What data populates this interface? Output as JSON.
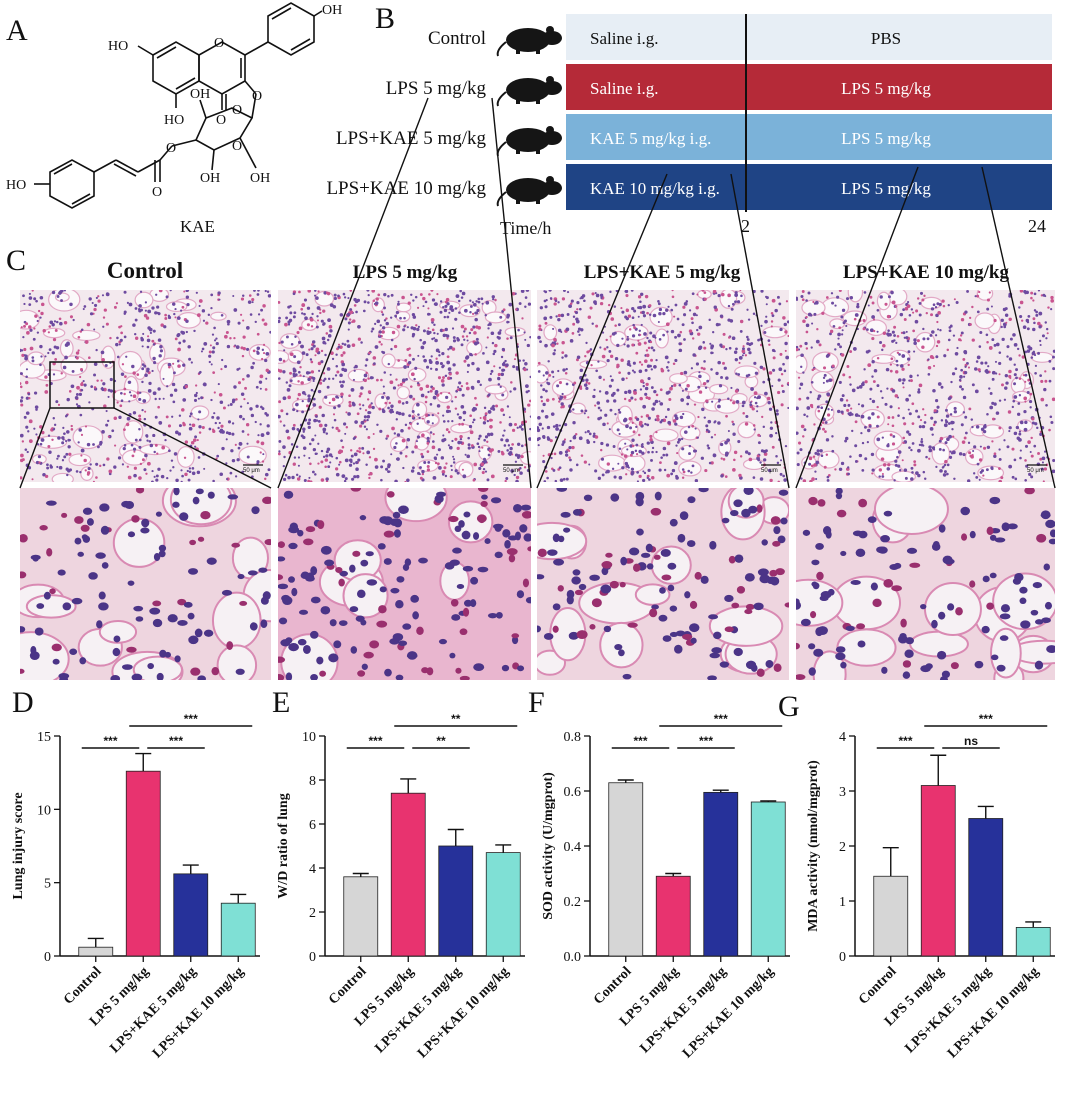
{
  "panels": {
    "a": "A",
    "b": "B",
    "c": "C",
    "d": "D",
    "e": "E",
    "f": "F",
    "g": "G"
  },
  "structure": {
    "caption": "KAE",
    "atom_labels": [
      "HO",
      "OH",
      "O",
      "O",
      "O",
      "O",
      "O",
      "O",
      "HO",
      "OH",
      "OH",
      "OH",
      "O",
      "HO"
    ]
  },
  "scheme": {
    "groups": [
      {
        "name": "Control",
        "pre": "Saline i.g.",
        "post": "PBS",
        "color": "#e7eef5",
        "text_color": "#111111"
      },
      {
        "name": "LPS 5 mg/kg",
        "pre": "Saline i.g.",
        "post": "LPS 5 mg/kg",
        "color": "#b52a38",
        "text_color": "#ffffff"
      },
      {
        "name": "LPS+KAE 5 mg/kg",
        "pre": "KAE 5 mg/kg i.g.",
        "post": "LPS 5 mg/kg",
        "color": "#7bb2d9",
        "text_color": "#ffffff"
      },
      {
        "name": "LPS+KAE 10 mg/kg",
        "pre": "KAE 10 mg/kg i.g.",
        "post": "LPS 5 mg/kg",
        "color": "#1f4485",
        "text_color": "#ffffff"
      }
    ],
    "time_label": "Time/h",
    "time_ticks": [
      "2",
      "24"
    ]
  },
  "histology": {
    "titles": [
      "Control",
      "LPS 5 mg/kg",
      "LPS+KAE 5 mg/kg",
      "LPS+KAE 10 mg/kg"
    ],
    "scale_bar": "50 μm"
  },
  "chart_data": [
    {
      "type": "bar",
      "categories": [
        "Control",
        "LPS 5 mg/kg",
        "LPS+KAE 5 mg/kg",
        "LPS+KAE 10 mg/kg"
      ],
      "values": [
        0.6,
        12.6,
        5.6,
        3.6
      ],
      "errors": [
        0.6,
        1.2,
        0.6,
        0.6
      ],
      "colors": [
        "#d6d6d6",
        "#e8336f",
        "#26319a",
        "#7fe0d5"
      ],
      "ylabel": "Lung injury score",
      "ylim": [
        0,
        15
      ],
      "yticks": [
        "0",
        "5",
        "10",
        "15"
      ],
      "yticks_values": [
        0,
        5,
        10,
        15
      ],
      "comparisons": [
        {
          "from": 0,
          "to": 1,
          "label": "***",
          "level": 1
        },
        {
          "from": 1,
          "to": 2,
          "label": "***",
          "level": 1
        },
        {
          "from": 1,
          "to": 3,
          "label": "***",
          "level": 2
        }
      ]
    },
    {
      "type": "bar",
      "categories": [
        "Control",
        "LPS 5 mg/kg",
        "LPS+KAE 5 mg/kg",
        "LPS+KAE 10 mg/kg"
      ],
      "values": [
        3.6,
        7.4,
        5.0,
        4.7
      ],
      "errors": [
        0.15,
        0.65,
        0.75,
        0.35
      ],
      "colors": [
        "#d6d6d6",
        "#e8336f",
        "#26319a",
        "#7fe0d5"
      ],
      "ylabel": "W/D ratio of lung",
      "ylim": [
        0,
        10
      ],
      "yticks": [
        "0",
        "2",
        "4",
        "6",
        "8",
        "10"
      ],
      "yticks_values": [
        0,
        2,
        4,
        6,
        8,
        10
      ],
      "comparisons": [
        {
          "from": 0,
          "to": 1,
          "label": "***",
          "level": 1
        },
        {
          "from": 1,
          "to": 2,
          "label": "**",
          "level": 1
        },
        {
          "from": 1,
          "to": 3,
          "label": "**",
          "level": 2
        }
      ]
    },
    {
      "type": "bar",
      "categories": [
        "Control",
        "LPS 5 mg/kg",
        "LPS+KAE 5 mg/kg",
        "LPS+KAE 10 mg/kg"
      ],
      "values": [
        0.63,
        0.29,
        0.595,
        0.56
      ],
      "errors": [
        0.01,
        0.01,
        0.008,
        0.004
      ],
      "colors": [
        "#d6d6d6",
        "#e8336f",
        "#26319a",
        "#7fe0d5"
      ],
      "ylabel": "SOD activity (U/mgprot)",
      "ylim": [
        0,
        0.8
      ],
      "yticks": [
        "0.0",
        "0.2",
        "0.4",
        "0.6",
        "0.8"
      ],
      "yticks_values": [
        0,
        0.2,
        0.4,
        0.6,
        0.8
      ],
      "comparisons": [
        {
          "from": 0,
          "to": 1,
          "label": "***",
          "level": 1
        },
        {
          "from": 1,
          "to": 2,
          "label": "***",
          "level": 1
        },
        {
          "from": 1,
          "to": 3,
          "label": "***",
          "level": 2
        }
      ]
    },
    {
      "type": "bar",
      "categories": [
        "Control",
        "LPS 5 mg/kg",
        "LPS+KAE 5 mg/kg",
        "LPS+KAE 10 mg/kg"
      ],
      "values": [
        1.45,
        3.1,
        2.5,
        0.52
      ],
      "errors": [
        0.52,
        0.55,
        0.22,
        0.1
      ],
      "colors": [
        "#d6d6d6",
        "#e8336f",
        "#26319a",
        "#7fe0d5"
      ],
      "ylabel": "MDA activity (nmol/mgprot)",
      "ylim": [
        0,
        4
      ],
      "yticks": [
        "0",
        "1",
        "2",
        "3",
        "4"
      ],
      "yticks_values": [
        0,
        1,
        2,
        3,
        4
      ],
      "comparisons": [
        {
          "from": 0,
          "to": 1,
          "label": "***",
          "level": 1
        },
        {
          "from": 1,
          "to": 2,
          "label": "ns",
          "level": 1
        },
        {
          "from": 1,
          "to": 3,
          "label": "***",
          "level": 2
        }
      ]
    }
  ]
}
